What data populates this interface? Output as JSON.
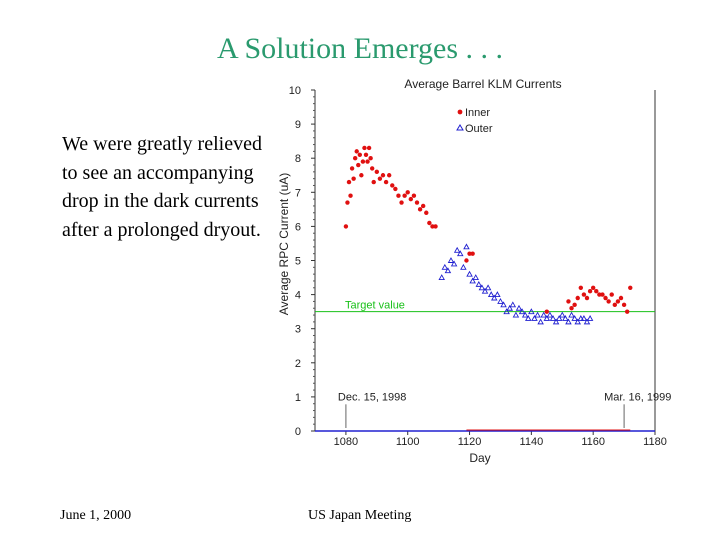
{
  "slide": {
    "title": "A Solution Emerges . . .",
    "body": "We were greatly relieved to see an accompanying drop in the dark currents after a prolonged dryout.",
    "footer_left": "June 1, 2000",
    "footer_center": "US Japan Meeting"
  },
  "chart_data": {
    "type": "scatter",
    "title": "Average Barrel KLM Currents",
    "xlabel": "Day",
    "ylabel": "Average RPC Current (uA)",
    "xlim": [
      1070,
      1180
    ],
    "ylim": [
      0,
      10
    ],
    "xticks": [
      1080,
      1100,
      1120,
      1140,
      1160,
      1180
    ],
    "yticks": [
      0,
      1,
      2,
      3,
      4,
      5,
      6,
      7,
      8,
      9,
      10
    ],
    "legend": {
      "position": "top-right",
      "entries": [
        "Inner",
        "Outer"
      ]
    },
    "colors": {
      "inner": "#e01010",
      "outer": "#2020d0",
      "target": "#18c018"
    },
    "reference_line": {
      "y": 3.5,
      "label": "Target value"
    },
    "annotations": [
      {
        "text": "Dec. 15, 1998",
        "x": 1080,
        "y": 0.9
      },
      {
        "text": "Mar. 16, 1999",
        "x": 1170,
        "y": 0.9
      }
    ],
    "series": [
      {
        "name": "Inner",
        "marker": "dot",
        "points": [
          [
            1080,
            6.0
          ],
          [
            1080.5,
            6.7
          ],
          [
            1081,
            7.3
          ],
          [
            1081.5,
            6.9
          ],
          [
            1082,
            7.7
          ],
          [
            1082.5,
            7.4
          ],
          [
            1083,
            8.0
          ],
          [
            1083.5,
            8.2
          ],
          [
            1084,
            7.8
          ],
          [
            1084.5,
            8.1
          ],
          [
            1085,
            7.5
          ],
          [
            1085.5,
            7.9
          ],
          [
            1086,
            8.3
          ],
          [
            1086.5,
            8.1
          ],
          [
            1087,
            7.9
          ],
          [
            1087.5,
            8.3
          ],
          [
            1088,
            8.0
          ],
          [
            1088.5,
            7.7
          ],
          [
            1089,
            7.3
          ],
          [
            1090,
            7.6
          ],
          [
            1091,
            7.4
          ],
          [
            1092,
            7.5
          ],
          [
            1093,
            7.3
          ],
          [
            1094,
            7.5
          ],
          [
            1095,
            7.2
          ],
          [
            1096,
            7.1
          ],
          [
            1097,
            6.9
          ],
          [
            1098,
            6.7
          ],
          [
            1099,
            6.9
          ],
          [
            1100,
            7.0
          ],
          [
            1101,
            6.8
          ],
          [
            1102,
            6.9
          ],
          [
            1103,
            6.7
          ],
          [
            1104,
            6.5
          ],
          [
            1105,
            6.6
          ],
          [
            1106,
            6.4
          ],
          [
            1107,
            6.1
          ],
          [
            1108,
            6.0
          ],
          [
            1109,
            6.0
          ],
          [
            1119,
            5.0
          ],
          [
            1120,
            5.2
          ],
          [
            1121,
            5.2
          ],
          [
            1145,
            3.5
          ],
          [
            1152,
            3.8
          ],
          [
            1153,
            3.6
          ],
          [
            1154,
            3.7
          ],
          [
            1155,
            3.9
          ],
          [
            1156,
            4.2
          ],
          [
            1157,
            4.0
          ],
          [
            1158,
            3.9
          ],
          [
            1159,
            4.1
          ],
          [
            1160,
            4.2
          ],
          [
            1161,
            4.1
          ],
          [
            1162,
            4.0
          ],
          [
            1163,
            4.0
          ],
          [
            1164,
            3.9
          ],
          [
            1165,
            3.8
          ],
          [
            1166,
            4.0
          ],
          [
            1167,
            3.7
          ],
          [
            1168,
            3.8
          ],
          [
            1169,
            3.9
          ],
          [
            1170,
            3.7
          ],
          [
            1171,
            3.5
          ],
          [
            1172,
            4.2
          ]
        ]
      },
      {
        "name": "Outer",
        "marker": "triangle",
        "points": [
          [
            1111,
            4.5
          ],
          [
            1112,
            4.8
          ],
          [
            1113,
            4.7
          ],
          [
            1114,
            5.0
          ],
          [
            1115,
            4.9
          ],
          [
            1116,
            5.3
          ],
          [
            1117,
            5.2
          ],
          [
            1118,
            4.8
          ],
          [
            1119,
            5.4
          ],
          [
            1120,
            4.6
          ],
          [
            1121,
            4.4
          ],
          [
            1122,
            4.5
          ],
          [
            1123,
            4.3
          ],
          [
            1124,
            4.2
          ],
          [
            1125,
            4.1
          ],
          [
            1126,
            4.2
          ],
          [
            1127,
            4.0
          ],
          [
            1128,
            3.9
          ],
          [
            1129,
            4.0
          ],
          [
            1130,
            3.8
          ],
          [
            1131,
            3.7
          ],
          [
            1132,
            3.5
          ],
          [
            1133,
            3.6
          ],
          [
            1134,
            3.7
          ],
          [
            1135,
            3.4
          ],
          [
            1136,
            3.6
          ],
          [
            1137,
            3.5
          ],
          [
            1138,
            3.4
          ],
          [
            1139,
            3.3
          ],
          [
            1140,
            3.5
          ],
          [
            1141,
            3.3
          ],
          [
            1142,
            3.4
          ],
          [
            1143,
            3.2
          ],
          [
            1144,
            3.4
          ],
          [
            1145,
            3.3
          ],
          [
            1146,
            3.4
          ],
          [
            1147,
            3.3
          ],
          [
            1148,
            3.2
          ],
          [
            1149,
            3.3
          ],
          [
            1150,
            3.4
          ],
          [
            1151,
            3.3
          ],
          [
            1152,
            3.2
          ],
          [
            1153,
            3.4
          ],
          [
            1154,
            3.3
          ],
          [
            1155,
            3.2
          ],
          [
            1156,
            3.3
          ],
          [
            1157,
            3.3
          ],
          [
            1158,
            3.2
          ],
          [
            1159,
            3.3
          ]
        ]
      }
    ]
  }
}
